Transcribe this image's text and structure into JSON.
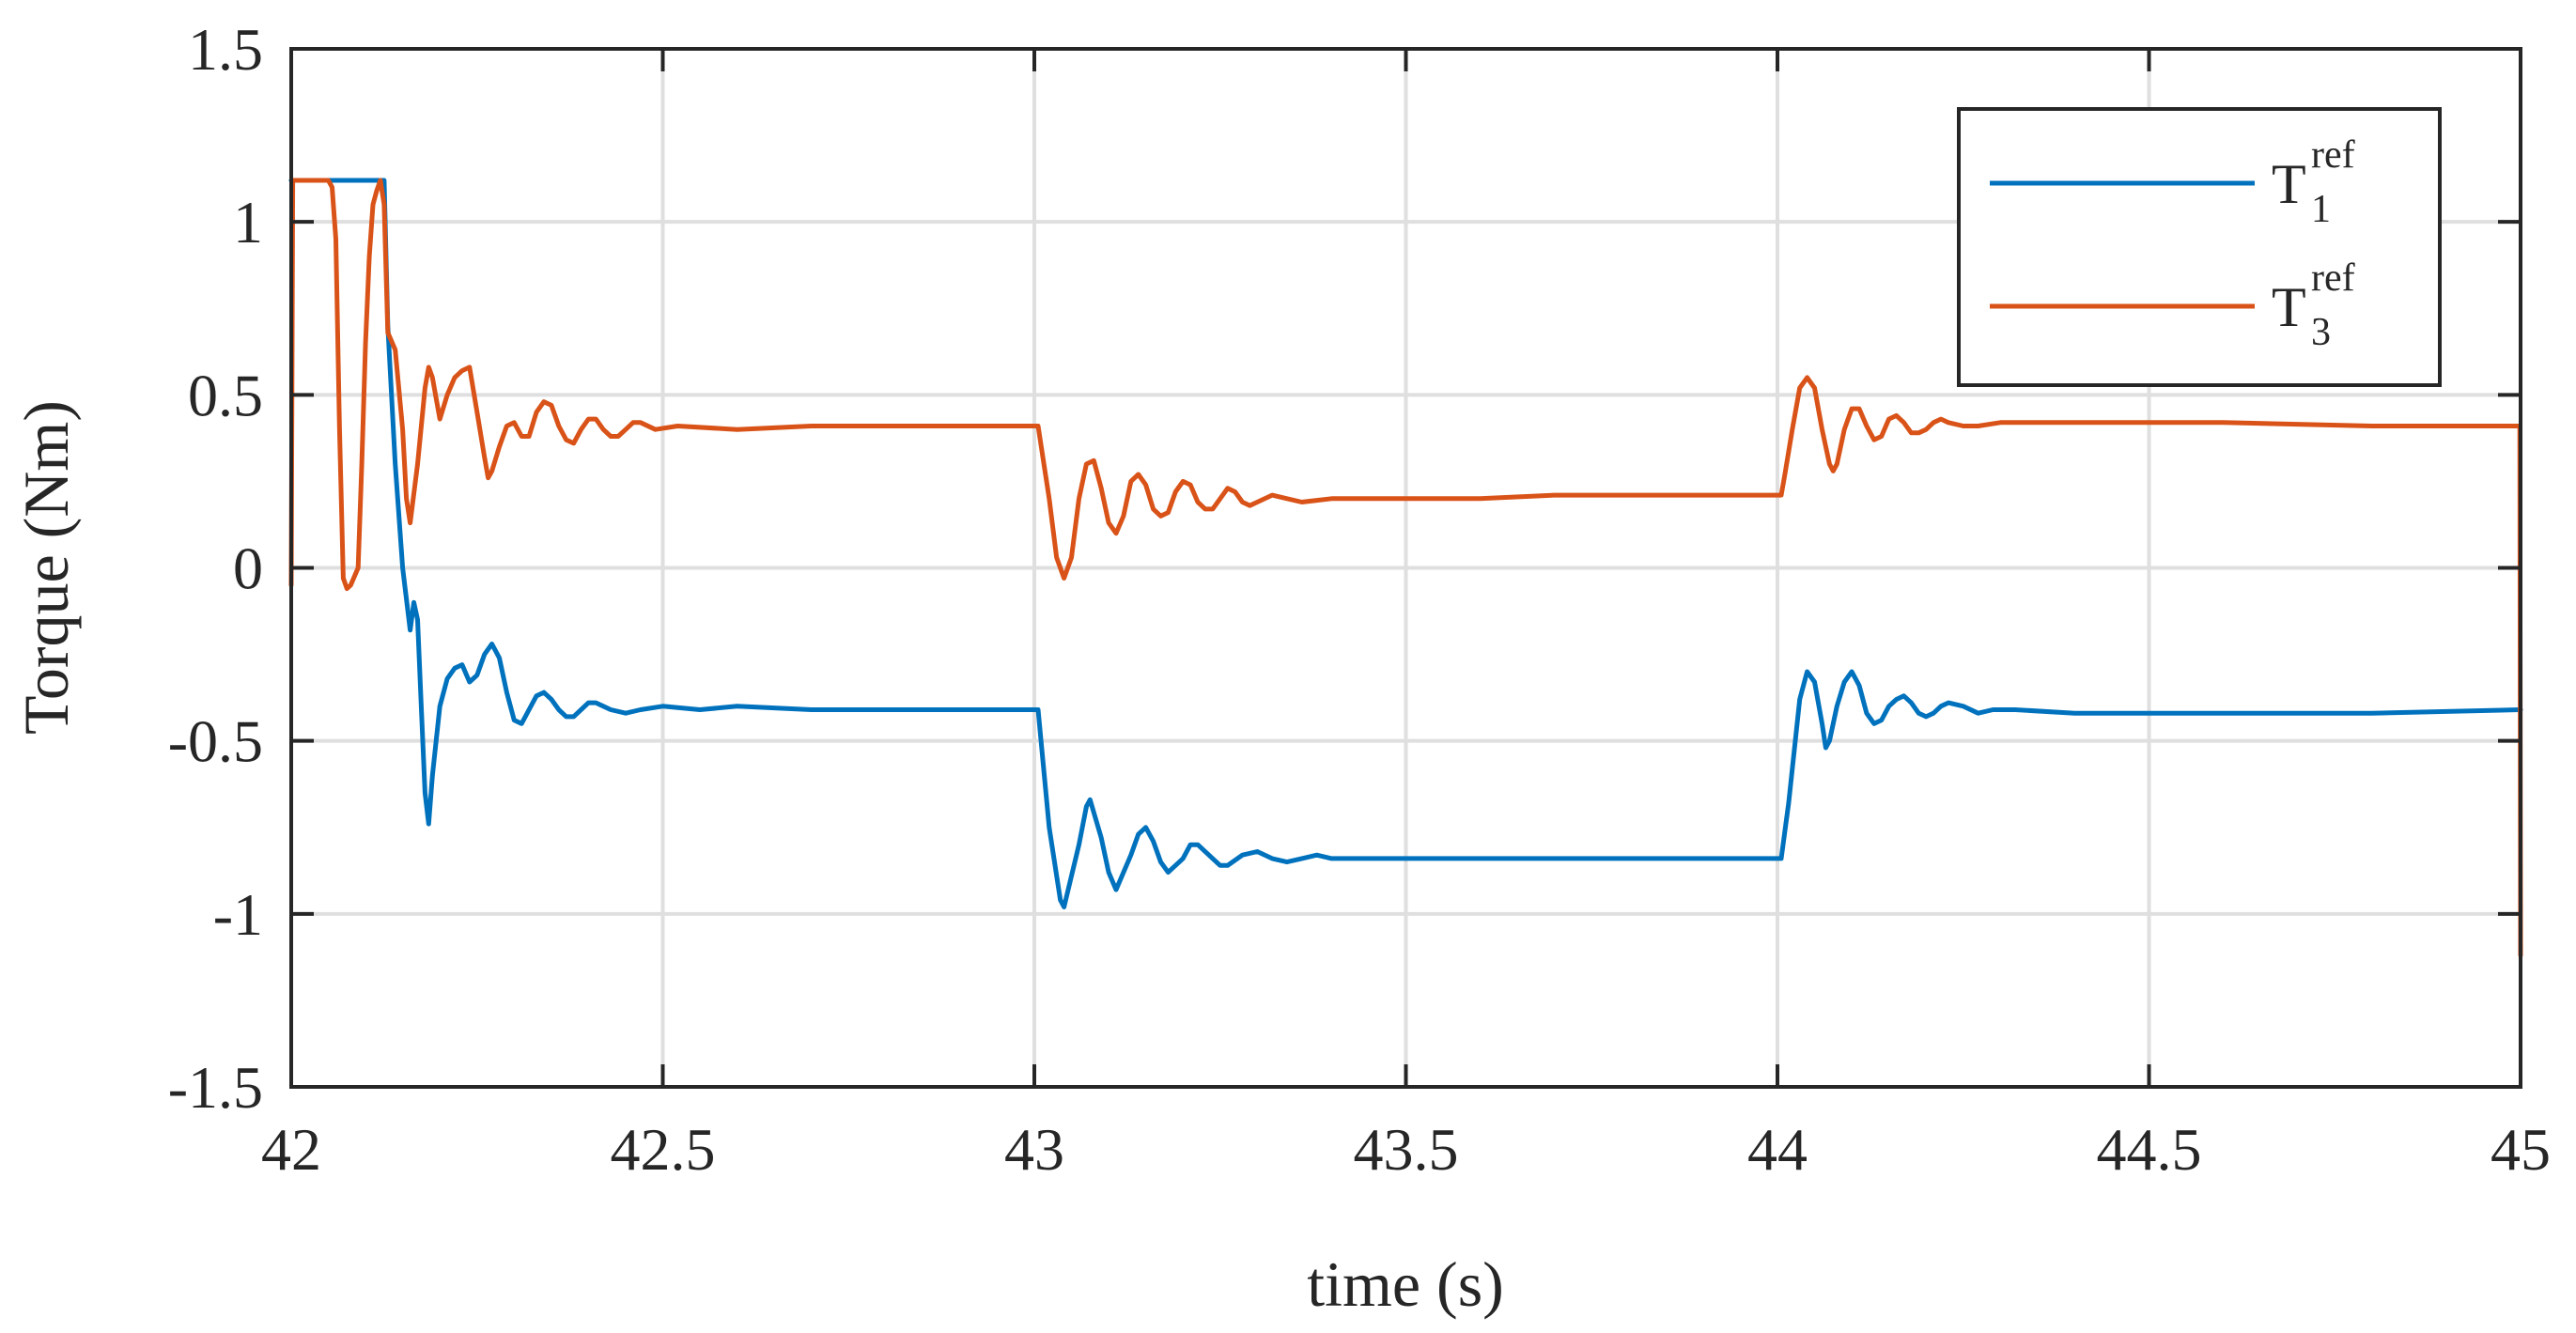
{
  "chart_data": {
    "type": "line",
    "xlabel": "time (s)",
    "ylabel": "Torque (Nm)",
    "xlim": [
      42,
      45
    ],
    "ylim": [
      -1.5,
      1.5
    ],
    "grid": true,
    "legend_position": "top-right",
    "x_ticks": [
      "42",
      "42.5",
      "43",
      "43.5",
      "44",
      "44.5",
      "45"
    ],
    "y_ticks": [
      "1.5",
      "1",
      "0.5",
      "0",
      "-0.5",
      "-1",
      "-1.5"
    ],
    "series": [
      {
        "name_main": "T",
        "name_sup": "ref",
        "name_sub": "1",
        "color": "#0072BD",
        "points": [
          [
            42.0,
            1.12
          ],
          [
            42.12,
            1.12
          ],
          [
            42.125,
            1.12
          ],
          [
            42.13,
            0.7
          ],
          [
            42.14,
            0.3
          ],
          [
            42.15,
            0.0
          ],
          [
            42.16,
            -0.18
          ],
          [
            42.165,
            -0.1
          ],
          [
            42.17,
            -0.15
          ],
          [
            42.175,
            -0.4
          ],
          [
            42.18,
            -0.65
          ],
          [
            42.185,
            -0.74
          ],
          [
            42.19,
            -0.6
          ],
          [
            42.2,
            -0.4
          ],
          [
            42.21,
            -0.32
          ],
          [
            42.22,
            -0.29
          ],
          [
            42.23,
            -0.28
          ],
          [
            42.24,
            -0.33
          ],
          [
            42.25,
            -0.31
          ],
          [
            42.26,
            -0.25
          ],
          [
            42.27,
            -0.22
          ],
          [
            42.28,
            -0.26
          ],
          [
            42.29,
            -0.36
          ],
          [
            42.3,
            -0.44
          ],
          [
            42.31,
            -0.45
          ],
          [
            42.32,
            -0.41
          ],
          [
            42.33,
            -0.37
          ],
          [
            42.34,
            -0.36
          ],
          [
            42.35,
            -0.38
          ],
          [
            42.36,
            -0.41
          ],
          [
            42.37,
            -0.43
          ],
          [
            42.38,
            -0.43
          ],
          [
            42.39,
            -0.41
          ],
          [
            42.4,
            -0.39
          ],
          [
            42.41,
            -0.39
          ],
          [
            42.42,
            -0.4
          ],
          [
            42.43,
            -0.41
          ],
          [
            42.45,
            -0.42
          ],
          [
            42.47,
            -0.41
          ],
          [
            42.5,
            -0.4
          ],
          [
            42.55,
            -0.41
          ],
          [
            42.6,
            -0.4
          ],
          [
            42.7,
            -0.41
          ],
          [
            42.8,
            -0.41
          ],
          [
            42.9,
            -0.41
          ],
          [
            43.0,
            -0.41
          ],
          [
            43.005,
            -0.41
          ],
          [
            43.02,
            -0.75
          ],
          [
            43.035,
            -0.96
          ],
          [
            43.04,
            -0.98
          ],
          [
            43.06,
            -0.8
          ],
          [
            43.07,
            -0.69
          ],
          [
            43.075,
            -0.67
          ],
          [
            43.09,
            -0.78
          ],
          [
            43.1,
            -0.88
          ],
          [
            43.11,
            -0.93
          ],
          [
            43.13,
            -0.83
          ],
          [
            43.14,
            -0.77
          ],
          [
            43.15,
            -0.75
          ],
          [
            43.16,
            -0.79
          ],
          [
            43.17,
            -0.85
          ],
          [
            43.18,
            -0.88
          ],
          [
            43.2,
            -0.84
          ],
          [
            43.21,
            -0.8
          ],
          [
            43.22,
            -0.8
          ],
          [
            43.24,
            -0.84
          ],
          [
            43.25,
            -0.86
          ],
          [
            43.26,
            -0.86
          ],
          [
            43.28,
            -0.83
          ],
          [
            43.3,
            -0.82
          ],
          [
            43.32,
            -0.84
          ],
          [
            43.34,
            -0.85
          ],
          [
            43.36,
            -0.84
          ],
          [
            43.38,
            -0.83
          ],
          [
            43.4,
            -0.84
          ],
          [
            43.45,
            -0.84
          ],
          [
            43.5,
            -0.84
          ],
          [
            43.6,
            -0.84
          ],
          [
            43.7,
            -0.84
          ],
          [
            43.8,
            -0.84
          ],
          [
            43.9,
            -0.84
          ],
          [
            44.0,
            -0.84
          ],
          [
            44.005,
            -0.84
          ],
          [
            44.015,
            -0.68
          ],
          [
            44.03,
            -0.38
          ],
          [
            44.04,
            -0.3
          ],
          [
            44.05,
            -0.33
          ],
          [
            44.06,
            -0.45
          ],
          [
            44.065,
            -0.52
          ],
          [
            44.07,
            -0.5
          ],
          [
            44.08,
            -0.4
          ],
          [
            44.09,
            -0.33
          ],
          [
            44.1,
            -0.3
          ],
          [
            44.11,
            -0.34
          ],
          [
            44.12,
            -0.42
          ],
          [
            44.13,
            -0.45
          ],
          [
            44.14,
            -0.44
          ],
          [
            44.15,
            -0.4
          ],
          [
            44.16,
            -0.38
          ],
          [
            44.17,
            -0.37
          ],
          [
            44.18,
            -0.39
          ],
          [
            44.19,
            -0.42
          ],
          [
            44.2,
            -0.43
          ],
          [
            44.21,
            -0.42
          ],
          [
            44.22,
            -0.4
          ],
          [
            44.23,
            -0.39
          ],
          [
            44.25,
            -0.4
          ],
          [
            44.27,
            -0.42
          ],
          [
            44.29,
            -0.41
          ],
          [
            44.32,
            -0.41
          ],
          [
            44.4,
            -0.42
          ],
          [
            44.5,
            -0.42
          ],
          [
            44.6,
            -0.42
          ],
          [
            44.8,
            -0.42
          ],
          [
            44.999,
            -0.41
          ],
          [
            45.0,
            -0.41
          ]
        ]
      },
      {
        "name_main": "T",
        "name_sup": "ref",
        "name_sub": "3",
        "color": "#D95319",
        "points": [
          [
            42.0,
            -0.05
          ],
          [
            42.002,
            1.12
          ],
          [
            42.05,
            1.12
          ],
          [
            42.055,
            1.1
          ],
          [
            42.06,
            0.95
          ],
          [
            42.065,
            0.4
          ],
          [
            42.07,
            -0.03
          ],
          [
            42.075,
            -0.06
          ],
          [
            42.08,
            -0.05
          ],
          [
            42.09,
            0.0
          ],
          [
            42.095,
            0.3
          ],
          [
            42.1,
            0.65
          ],
          [
            42.105,
            0.9
          ],
          [
            42.11,
            1.05
          ],
          [
            42.115,
            1.09
          ],
          [
            42.12,
            1.12
          ],
          [
            42.125,
            1.05
          ],
          [
            42.13,
            0.68
          ],
          [
            42.14,
            0.63
          ],
          [
            42.15,
            0.4
          ],
          [
            42.155,
            0.2
          ],
          [
            42.16,
            0.13
          ],
          [
            42.17,
            0.3
          ],
          [
            42.18,
            0.52
          ],
          [
            42.185,
            0.58
          ],
          [
            42.19,
            0.55
          ],
          [
            42.2,
            0.43
          ],
          [
            42.21,
            0.5
          ],
          [
            42.22,
            0.55
          ],
          [
            42.23,
            0.57
          ],
          [
            42.24,
            0.58
          ],
          [
            42.25,
            0.45
          ],
          [
            42.26,
            0.32
          ],
          [
            42.265,
            0.26
          ],
          [
            42.27,
            0.28
          ],
          [
            42.28,
            0.35
          ],
          [
            42.29,
            0.41
          ],
          [
            42.3,
            0.42
          ],
          [
            42.31,
            0.38
          ],
          [
            42.32,
            0.38
          ],
          [
            42.33,
            0.45
          ],
          [
            42.34,
            0.48
          ],
          [
            42.35,
            0.47
          ],
          [
            42.36,
            0.41
          ],
          [
            42.37,
            0.37
          ],
          [
            42.38,
            0.36
          ],
          [
            42.39,
            0.4
          ],
          [
            42.4,
            0.43
          ],
          [
            42.41,
            0.43
          ],
          [
            42.42,
            0.4
          ],
          [
            42.43,
            0.38
          ],
          [
            42.44,
            0.38
          ],
          [
            42.45,
            0.4
          ],
          [
            42.46,
            0.42
          ],
          [
            42.47,
            0.42
          ],
          [
            42.49,
            0.4
          ],
          [
            42.52,
            0.41
          ],
          [
            42.6,
            0.4
          ],
          [
            42.7,
            0.41
          ],
          [
            42.8,
            0.41
          ],
          [
            42.9,
            0.41
          ],
          [
            43.0,
            0.41
          ],
          [
            43.005,
            0.41
          ],
          [
            43.02,
            0.2
          ],
          [
            43.03,
            0.03
          ],
          [
            43.04,
            -0.03
          ],
          [
            43.05,
            0.03
          ],
          [
            43.06,
            0.2
          ],
          [
            43.07,
            0.3
          ],
          [
            43.08,
            0.31
          ],
          [
            43.09,
            0.23
          ],
          [
            43.1,
            0.13
          ],
          [
            43.11,
            0.1
          ],
          [
            43.12,
            0.15
          ],
          [
            43.13,
            0.25
          ],
          [
            43.14,
            0.27
          ],
          [
            43.15,
            0.24
          ],
          [
            43.16,
            0.17
          ],
          [
            43.17,
            0.15
          ],
          [
            43.18,
            0.16
          ],
          [
            43.19,
            0.22
          ],
          [
            43.2,
            0.25
          ],
          [
            43.21,
            0.24
          ],
          [
            43.22,
            0.19
          ],
          [
            43.23,
            0.17
          ],
          [
            43.24,
            0.17
          ],
          [
            43.25,
            0.2
          ],
          [
            43.26,
            0.23
          ],
          [
            43.27,
            0.22
          ],
          [
            43.28,
            0.19
          ],
          [
            43.29,
            0.18
          ],
          [
            43.3,
            0.19
          ],
          [
            43.32,
            0.21
          ],
          [
            43.34,
            0.2
          ],
          [
            43.36,
            0.19
          ],
          [
            43.4,
            0.2
          ],
          [
            43.45,
            0.2
          ],
          [
            43.5,
            0.2
          ],
          [
            43.6,
            0.2
          ],
          [
            43.7,
            0.21
          ],
          [
            43.8,
            0.21
          ],
          [
            43.9,
            0.21
          ],
          [
            44.0,
            0.21
          ],
          [
            44.005,
            0.21
          ],
          [
            44.01,
            0.27
          ],
          [
            44.02,
            0.4
          ],
          [
            44.03,
            0.52
          ],
          [
            44.04,
            0.55
          ],
          [
            44.05,
            0.52
          ],
          [
            44.06,
            0.4
          ],
          [
            44.07,
            0.3
          ],
          [
            44.075,
            0.28
          ],
          [
            44.08,
            0.3
          ],
          [
            44.09,
            0.4
          ],
          [
            44.1,
            0.46
          ],
          [
            44.11,
            0.46
          ],
          [
            44.12,
            0.41
          ],
          [
            44.13,
            0.37
          ],
          [
            44.14,
            0.38
          ],
          [
            44.15,
            0.43
          ],
          [
            44.16,
            0.44
          ],
          [
            44.17,
            0.42
          ],
          [
            44.18,
            0.39
          ],
          [
            44.19,
            0.39
          ],
          [
            44.2,
            0.4
          ],
          [
            44.21,
            0.42
          ],
          [
            44.22,
            0.43
          ],
          [
            44.23,
            0.42
          ],
          [
            44.25,
            0.41
          ],
          [
            44.27,
            0.41
          ],
          [
            44.3,
            0.42
          ],
          [
            44.4,
            0.42
          ],
          [
            44.5,
            0.42
          ],
          [
            44.6,
            0.42
          ],
          [
            44.8,
            0.41
          ],
          [
            44.999,
            0.41
          ],
          [
            45.0,
            -1.12
          ]
        ]
      }
    ]
  }
}
